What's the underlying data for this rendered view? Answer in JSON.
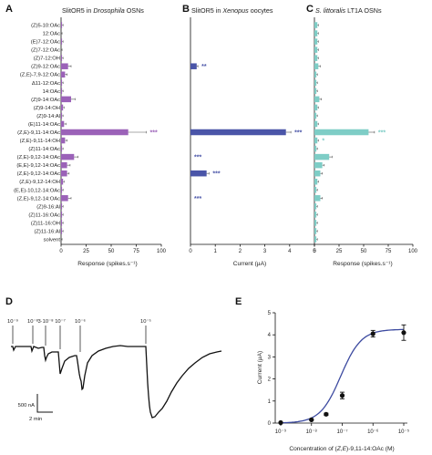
{
  "categories": [
    "(Z)5-10:OAc",
    "12:OAc",
    "(E)7-12:OAc",
    "(Z)7-12:OAc",
    "(Z)7-12:OH",
    "(Z)9-12:OAc",
    "(Z,E)-7,9-12:OAc",
    "Δ11-12:OAc",
    "14:OAc",
    "(Z)9-14:OAc",
    "(Z)9-14:OH",
    "(Z)9-14:Al",
    "(E)11-14:OAc",
    "(Z,E)-9,11-14:OAc",
    "(Z,E)-9,11-14:OH",
    "(Z)11-14:OAc",
    "(Z,E)-9,12-14:OAc",
    "(E,E)-9,12-14:OAc",
    "(Z,E)-9,12-14:OAc",
    "(Z,E)-9,12-14:OH",
    "(E,E)-10,12-14:OAc",
    "(Z,E)-9,12-14:OAc",
    "(Z)9-16:Al",
    "(Z)11-16:OAc",
    "(Z)11-16:OH",
    "(Z)11-16:Al",
    "solvent"
  ],
  "panels": {
    "A": {
      "label": "A",
      "title_pre": "SlitOR5 in ",
      "title_italic": "Drosophila",
      "title_post": " OSNs",
      "xlabel": "Response (spikes.s⁻¹)",
      "ticks": [
        "0",
        "25",
        "50",
        "75",
        "100"
      ],
      "stars": [
        "***"
      ]
    },
    "B": {
      "label": "B",
      "title_pre": "SlitOR5 in ",
      "title_italic": "Xenopus",
      "title_post": " oocytes",
      "xlabel": "Current (µA)",
      "ticks": [
        "0",
        "1",
        "2",
        "3",
        "4",
        "5"
      ],
      "stars": [
        "**",
        "***",
        "***"
      ]
    },
    "C": {
      "label": "C",
      "title_pre": "",
      "title_italic": "S. littoralis",
      "title_post": " LT1A OSNs",
      "xlabel": "Response (spikes.s⁻¹)",
      "ticks": [
        "0",
        "25",
        "50",
        "75",
        "100"
      ],
      "stars": [
        "***",
        "*"
      ]
    },
    "D": {
      "label": "D",
      "conc_labels": [
        "10⁻⁹",
        "10⁻⁸",
        "3·10⁻⁸",
        "10⁻⁷",
        "10⁻⁶",
        "10⁻⁵"
      ],
      "scale_y": "500 nA",
      "scale_x": "2 min"
    },
    "E": {
      "label": "E",
      "ylabel": "Current (µA)",
      "ticks_y": [
        "0",
        "1",
        "2",
        "3",
        "4",
        "5"
      ],
      "ticks_x": [
        "10⁻⁹",
        "10⁻⁸",
        "10⁻⁷",
        "10⁻⁶",
        "10⁻⁵"
      ],
      "xlabel_pre": "Concentration of (",
      "xlabel_italic": "Z,E",
      "xlabel_post": ")-9,11-14:OAc (M)"
    }
  },
  "colors": {
    "A": "#9b62b8",
    "B": "#4a55a8",
    "C": "#7ecdc6",
    "curve": "#3c4aa0",
    "stars_A": "#9b62b8",
    "stars_B": "#4a55a8",
    "stars_C": "#7ecdc6"
  },
  "chart_data": [
    {
      "type": "bar",
      "orientation": "horizontal",
      "panel": "A",
      "title": "SlitOR5 in Drosophila OSNs",
      "xlabel": "Response (spikes.s⁻¹)",
      "xlim": [
        0,
        100
      ],
      "values": [
        1,
        0,
        1,
        0,
        1,
        7,
        4,
        1,
        1,
        10,
        2,
        1,
        3,
        67,
        4,
        1,
        13,
        6,
        6,
        2,
        1,
        7,
        1,
        1,
        1,
        1,
        0
      ],
      "errors": [
        1,
        1,
        1,
        1,
        1,
        3,
        2,
        1,
        1,
        4,
        1,
        1,
        2,
        18,
        2,
        1,
        4,
        3,
        2,
        1,
        1,
        3,
        1,
        1,
        1,
        1,
        1
      ],
      "significance": {
        "(Z,E)-9,11-14:OAc": "***"
      }
    },
    {
      "type": "bar",
      "orientation": "horizontal",
      "panel": "B",
      "title": "SlitOR5 in Xenopus oocytes",
      "xlabel": "Current (µA)",
      "xlim": [
        0,
        5
      ],
      "values": [
        0,
        0,
        0,
        0,
        0,
        0.25,
        0,
        0,
        0,
        0,
        0,
        0,
        0,
        3.85,
        0,
        0,
        0,
        0,
        0.65,
        0,
        0,
        0,
        0,
        0,
        0,
        0,
        0
      ],
      "errors": [
        0,
        0,
        0,
        0,
        0,
        0.05,
        0,
        0,
        0,
        0,
        0,
        0,
        0,
        0.2,
        0,
        0,
        0,
        0,
        0.1,
        0,
        0,
        0,
        0,
        0,
        0,
        0,
        0
      ],
      "significance": {
        "(Z)9-12:OAc": "**",
        "(Z,E)-9,11-14:OAc": "***",
        "(Z,E)-9,12-14:OAc": "***"
      }
    },
    {
      "type": "bar",
      "orientation": "horizontal",
      "panel": "C",
      "title": "S. littoralis LT1A OSNs",
      "xlabel": "Response (spikes.s⁻¹)",
      "xlim": [
        0,
        100
      ],
      "values": [
        3,
        3,
        3,
        3,
        3,
        4,
        2,
        2,
        2,
        5,
        3,
        2,
        3,
        55,
        3,
        2,
        15,
        8,
        6,
        3,
        2,
        6,
        2,
        2,
        2,
        2,
        2
      ],
      "errors": [
        1,
        1,
        1,
        1,
        1,
        2,
        1,
        1,
        1,
        2,
        1,
        1,
        1,
        6,
        1,
        1,
        3,
        2,
        2,
        1,
        1,
        2,
        1,
        1,
        1,
        1,
        1
      ],
      "significance": {
        "(Z,E)-9,11-14:OAc": "***",
        "(Z,E)-9,11-14:OH": "*"
      }
    },
    {
      "type": "line",
      "panel": "D",
      "concentrations": [
        "10⁻⁹",
        "10⁻⁸",
        "3·10⁻⁸",
        "10⁻⁷",
        "10⁻⁶",
        "10⁻⁵"
      ],
      "scale_bar": {
        "current": "500 nA",
        "time": "2 min"
      }
    },
    {
      "type": "scatter",
      "panel": "E",
      "x": [
        1e-09,
        1e-08,
        3e-08,
        1e-07,
        1e-06,
        1e-05
      ],
      "y": [
        0.02,
        0.15,
        0.4,
        1.25,
        4.05,
        4.1
      ],
      "errors": [
        0.02,
        0.03,
        0.05,
        0.15,
        0.15,
        0.35
      ],
      "fit": "sigmoid",
      "xscale": "log",
      "ylabel": "Current (µA)",
      "xlabel": "Concentration of (Z,E)-9,11-14:OAc (M)",
      "ylim": [
        0,
        5
      ],
      "xlim": [
        1e-09,
        1e-05
      ]
    }
  ]
}
